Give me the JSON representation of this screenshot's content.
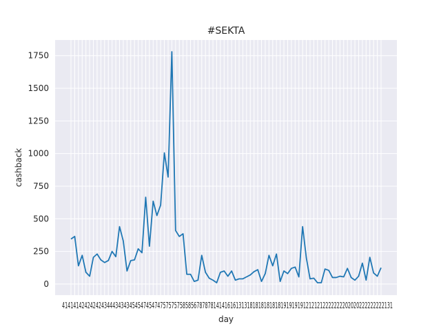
{
  "chart_data": {
    "type": "line",
    "title": "#SEKTA",
    "xlabel": "day",
    "ylabel": "cashback",
    "ylim": [
      -85,
      1870
    ],
    "yticks": [
      0,
      250,
      500,
      750,
      1000,
      1250,
      1500,
      1750
    ],
    "ytick_labels": [
      "0",
      "250",
      "500",
      "750",
      "1000",
      "1250",
      "1500",
      "1750"
    ],
    "x_tick_text": "4141414242424243444343434545474547475757575858567878781414161613131818181818181919191912121212222222202020222222222131",
    "grid": true,
    "background": "#eaeaf2",
    "line_color": "#1f77b4",
    "series": [
      {
        "values": [
          345,
          365,
          140,
          220,
          90,
          60,
          205,
          230,
          185,
          165,
          180,
          250,
          210,
          440,
          330,
          100,
          180,
          185,
          270,
          240,
          665,
          290,
          635,
          525,
          605,
          1005,
          820,
          1780,
          410,
          365,
          385,
          75,
          75,
          20,
          30,
          220,
          90,
          45,
          30,
          10,
          90,
          100,
          60,
          100,
          30,
          40,
          40,
          55,
          70,
          95,
          110,
          20,
          80,
          220,
          140,
          230,
          20,
          100,
          80,
          120,
          130,
          55,
          440,
          200,
          40,
          45,
          10,
          10,
          115,
          105,
          50,
          50,
          60,
          55,
          120,
          50,
          30,
          60,
          160,
          30,
          205,
          85,
          60,
          125
        ]
      }
    ]
  }
}
